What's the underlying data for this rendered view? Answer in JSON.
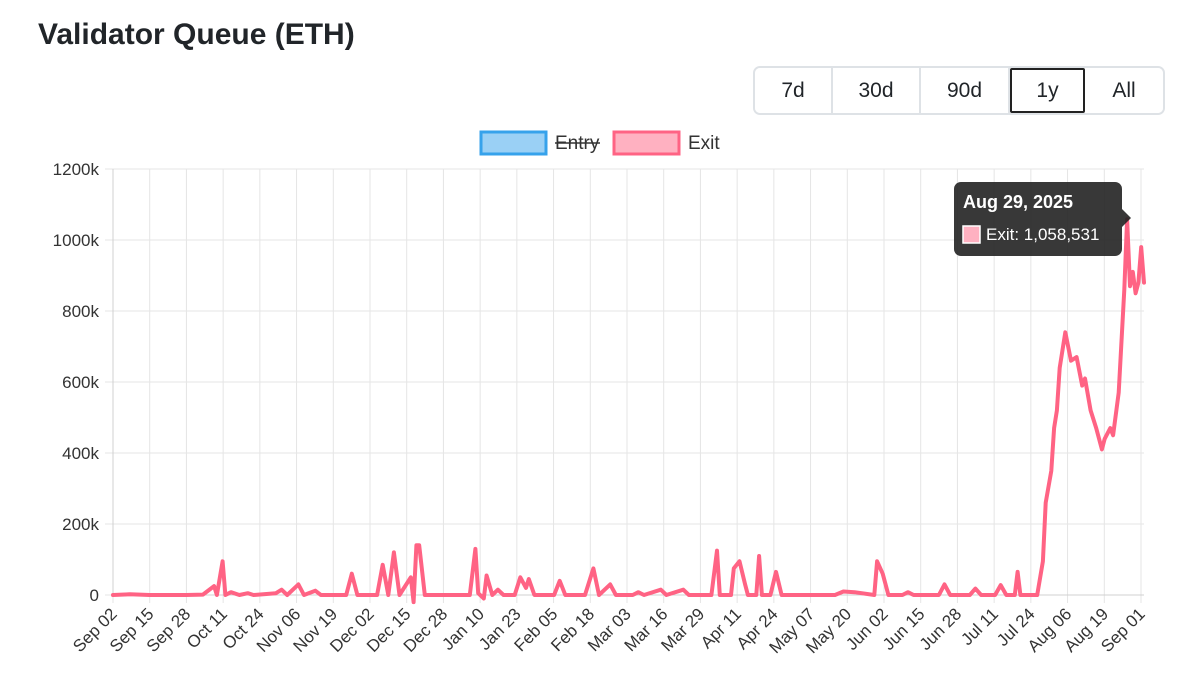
{
  "page": {
    "title": "Validator Queue (ETH)"
  },
  "range_buttons": [
    {
      "label": "7d"
    },
    {
      "label": "30d"
    },
    {
      "label": "90d"
    },
    {
      "label": "1y",
      "active": true
    },
    {
      "label": "All"
    }
  ],
  "tooltip": {
    "title": "Aug 29, 2025",
    "label": "Exit: 1,058,531"
  },
  "chart_data": {
    "type": "line",
    "title": "",
    "xlabel": "",
    "ylabel": "",
    "ylim": [
      0,
      1200000
    ],
    "yticks": [
      "0",
      "200k",
      "400k",
      "600k",
      "800k",
      "1000k",
      "1200k"
    ],
    "x_tick_labels": [
      "Sep 02",
      "Sep 15",
      "Sep 28",
      "Oct 11",
      "Oct 24",
      "Nov 06",
      "Nov 19",
      "Dec 02",
      "Dec 15",
      "Dec 28",
      "Jan 10",
      "Jan 23",
      "Feb 05",
      "Feb 18",
      "Mar 03",
      "Mar 16",
      "Mar 29",
      "Apr 11",
      "Apr 24",
      "May 07",
      "May 20",
      "Jun 02",
      "Jun 15",
      "Jun 28",
      "Jul 11",
      "Jul 24",
      "Aug 06",
      "Aug 19",
      "Sep 01"
    ],
    "x_start": "2024-09-02",
    "x_end": "2025-09-04",
    "grid": true,
    "legend_position": "top",
    "series": [
      {
        "name": "Entry",
        "hidden": true,
        "color": "#36a2eb",
        "fill": "#9ad0f5",
        "points": []
      },
      {
        "name": "Exit",
        "hidden": false,
        "color": "#ff6384",
        "fill": "#ffb1c1",
        "points": [
          [
            "2024-09-02",
            0
          ],
          [
            "2024-09-08",
            2000
          ],
          [
            "2024-09-15",
            0
          ],
          [
            "2024-09-22",
            0
          ],
          [
            "2024-09-28",
            0
          ],
          [
            "2024-10-04",
            1000
          ],
          [
            "2024-10-08",
            25000
          ],
          [
            "2024-10-09",
            0
          ],
          [
            "2024-10-11",
            95000
          ],
          [
            "2024-10-12",
            0
          ],
          [
            "2024-10-14",
            8000
          ],
          [
            "2024-10-17",
            0
          ],
          [
            "2024-10-20",
            5000
          ],
          [
            "2024-10-22",
            0
          ],
          [
            "2024-10-30",
            5000
          ],
          [
            "2024-11-01",
            15000
          ],
          [
            "2024-11-03",
            0
          ],
          [
            "2024-11-07",
            30000
          ],
          [
            "2024-11-09",
            0
          ],
          [
            "2024-11-13",
            12000
          ],
          [
            "2024-11-15",
            0
          ],
          [
            "2024-11-24",
            0
          ],
          [
            "2024-11-26",
            60000
          ],
          [
            "2024-11-28",
            0
          ],
          [
            "2024-12-05",
            0
          ],
          [
            "2024-12-07",
            85000
          ],
          [
            "2024-12-09",
            0
          ],
          [
            "2024-12-11",
            120000
          ],
          [
            "2024-12-13",
            0
          ],
          [
            "2024-12-17",
            50000
          ],
          [
            "2024-12-18",
            -20000
          ],
          [
            "2024-12-19",
            140000
          ],
          [
            "2024-12-20",
            140000
          ],
          [
            "2024-12-22",
            0
          ],
          [
            "2025-01-07",
            0
          ],
          [
            "2025-01-09",
            130000
          ],
          [
            "2025-01-10",
            5000
          ],
          [
            "2025-01-12",
            -10000
          ],
          [
            "2025-01-13",
            55000
          ],
          [
            "2025-01-15",
            0
          ],
          [
            "2025-01-17",
            15000
          ],
          [
            "2025-01-19",
            0
          ],
          [
            "2025-01-23",
            0
          ],
          [
            "2025-01-25",
            50000
          ],
          [
            "2025-01-27",
            20000
          ],
          [
            "2025-01-28",
            45000
          ],
          [
            "2025-01-30",
            0
          ],
          [
            "2025-02-06",
            0
          ],
          [
            "2025-02-08",
            40000
          ],
          [
            "2025-02-10",
            0
          ],
          [
            "2025-02-17",
            0
          ],
          [
            "2025-02-20",
            75000
          ],
          [
            "2025-02-22",
            0
          ],
          [
            "2025-02-26",
            30000
          ],
          [
            "2025-02-28",
            0
          ],
          [
            "2025-03-06",
            0
          ],
          [
            "2025-03-08",
            8000
          ],
          [
            "2025-03-10",
            0
          ],
          [
            "2025-03-16",
            15000
          ],
          [
            "2025-03-18",
            0
          ],
          [
            "2025-03-24",
            15000
          ],
          [
            "2025-03-26",
            0
          ],
          [
            "2025-04-03",
            0
          ],
          [
            "2025-04-05",
            125000
          ],
          [
            "2025-04-06",
            0
          ],
          [
            "2025-04-10",
            0
          ],
          [
            "2025-04-11",
            75000
          ],
          [
            "2025-04-13",
            95000
          ],
          [
            "2025-04-15",
            30000
          ],
          [
            "2025-04-16",
            0
          ],
          [
            "2025-04-19",
            0
          ],
          [
            "2025-04-20",
            110000
          ],
          [
            "2025-04-21",
            0
          ],
          [
            "2025-04-24",
            0
          ],
          [
            "2025-04-26",
            65000
          ],
          [
            "2025-04-28",
            0
          ],
          [
            "2025-05-17",
            0
          ],
          [
            "2025-05-20",
            10000
          ],
          [
            "2025-05-24",
            8000
          ],
          [
            "2025-05-31",
            0
          ],
          [
            "2025-06-01",
            95000
          ],
          [
            "2025-06-03",
            60000
          ],
          [
            "2025-06-05",
            0
          ],
          [
            "2025-06-10",
            0
          ],
          [
            "2025-06-12",
            8000
          ],
          [
            "2025-06-14",
            0
          ],
          [
            "2025-06-23",
            0
          ],
          [
            "2025-06-25",
            30000
          ],
          [
            "2025-06-27",
            0
          ],
          [
            "2025-07-04",
            0
          ],
          [
            "2025-07-06",
            18000
          ],
          [
            "2025-07-08",
            0
          ],
          [
            "2025-07-13",
            0
          ],
          [
            "2025-07-15",
            28000
          ],
          [
            "2025-07-17",
            0
          ],
          [
            "2025-07-20",
            0
          ],
          [
            "2025-07-21",
            65000
          ],
          [
            "2025-07-22",
            0
          ],
          [
            "2025-07-28",
            0
          ],
          [
            "2025-07-30",
            95000
          ],
          [
            "2025-07-31",
            260000
          ],
          [
            "2025-08-02",
            350000
          ],
          [
            "2025-08-03",
            470000
          ],
          [
            "2025-08-04",
            520000
          ],
          [
            "2025-08-05",
            640000
          ],
          [
            "2025-08-07",
            740000
          ],
          [
            "2025-08-09",
            660000
          ],
          [
            "2025-08-11",
            670000
          ],
          [
            "2025-08-13",
            590000
          ],
          [
            "2025-08-14",
            610000
          ],
          [
            "2025-08-16",
            520000
          ],
          [
            "2025-08-18",
            470000
          ],
          [
            "2025-08-20",
            410000
          ],
          [
            "2025-08-21",
            440000
          ],
          [
            "2025-08-23",
            470000
          ],
          [
            "2025-08-24",
            450000
          ],
          [
            "2025-08-26",
            570000
          ],
          [
            "2025-08-28",
            860000
          ],
          [
            "2025-08-29",
            1058531
          ],
          [
            "2025-08-30",
            870000
          ],
          [
            "2025-08-31",
            910000
          ],
          [
            "2025-09-01",
            850000
          ],
          [
            "2025-09-02",
            880000
          ],
          [
            "2025-09-03",
            980000
          ],
          [
            "2025-09-04",
            880000
          ]
        ]
      }
    ]
  }
}
